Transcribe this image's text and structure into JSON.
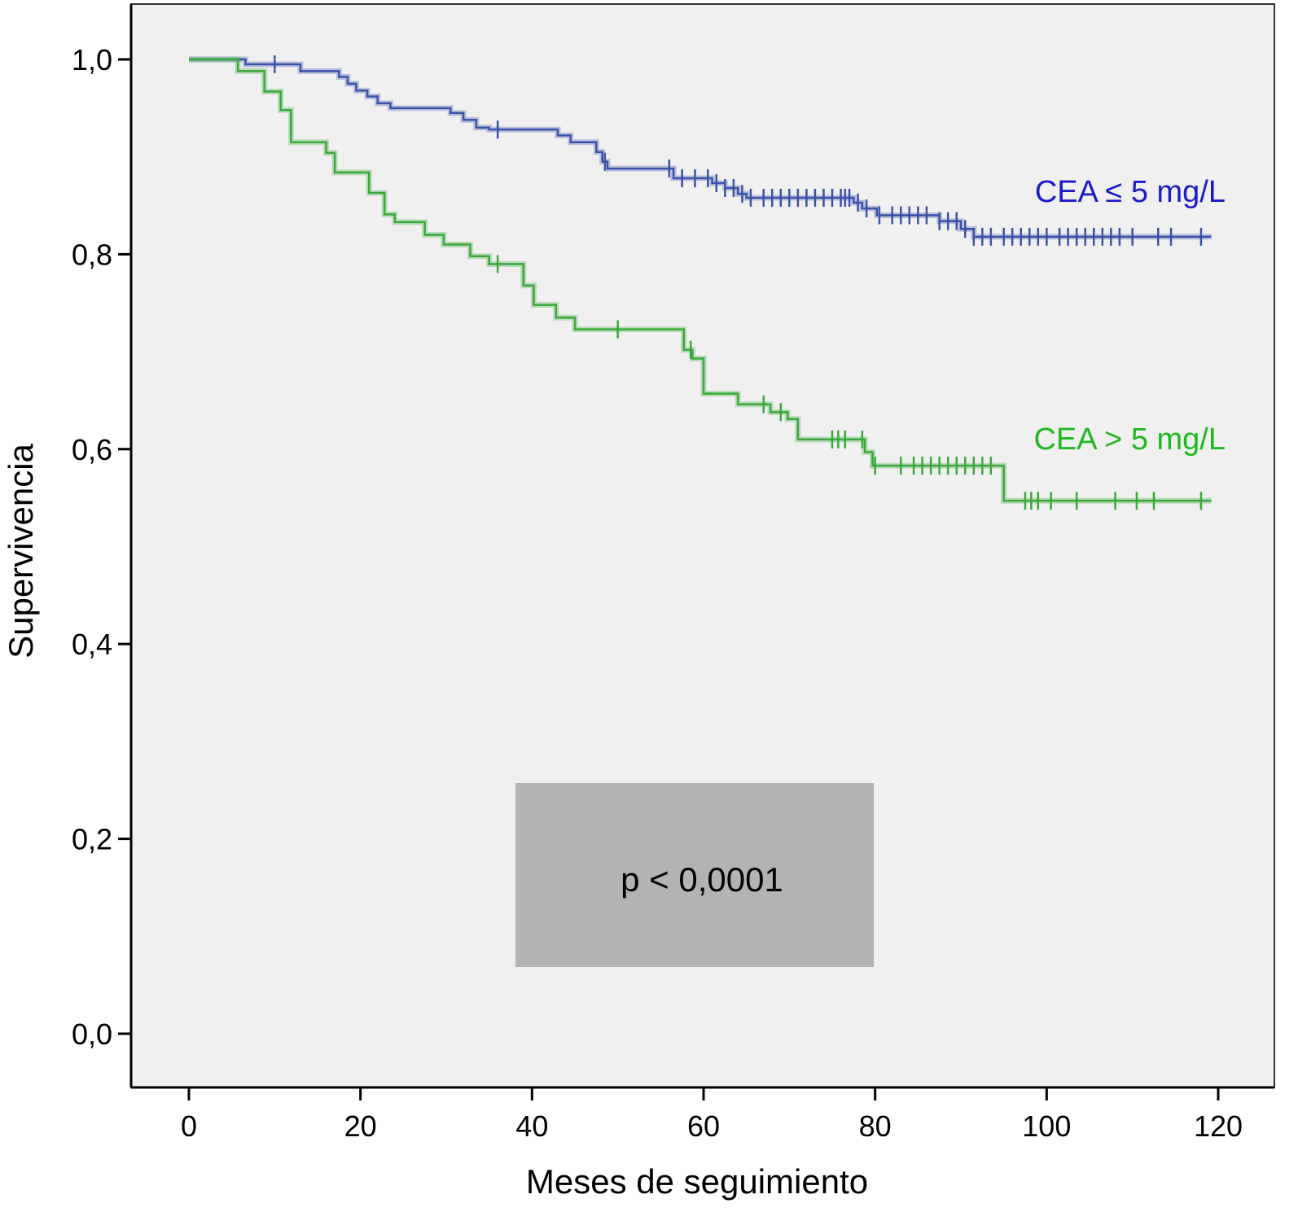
{
  "chart_data": {
    "type": "line",
    "subtype": "kaplan-meier-step",
    "title": "",
    "xlabel": "Meses de seguimiento",
    "ylabel": "Supervivencia",
    "xlim": [
      -7,
      127
    ],
    "ylim": [
      -0.055,
      1.055
    ],
    "xticks": [
      0,
      20,
      40,
      60,
      80,
      100,
      120
    ],
    "xtick_labels": [
      "0",
      "20",
      "40",
      "60",
      "80",
      "100",
      "120"
    ],
    "yticks": [
      0,
      0.2,
      0.4,
      0.6,
      0.8,
      1.0
    ],
    "ytick_labels": [
      "0,0",
      "0,2",
      "0,4",
      "0,6",
      "0,8",
      "1,0"
    ],
    "grid": false,
    "background": "#f0f0f0",
    "series": [
      {
        "name": "CEA ≤ 5 mg/L",
        "color": "#3a52a8",
        "label_color": "#1a1ac8",
        "end": 119.2,
        "steps": [
          [
            0,
            1.0
          ],
          [
            6.6,
            0.995
          ],
          [
            13,
            0.988
          ],
          [
            17.5,
            0.982
          ],
          [
            18.5,
            0.975
          ],
          [
            19.5,
            0.968
          ],
          [
            20.8,
            0.962
          ],
          [
            22,
            0.955
          ],
          [
            23.5,
            0.95
          ],
          [
            30.5,
            0.945
          ],
          [
            32,
            0.938
          ],
          [
            33.5,
            0.93
          ],
          [
            35,
            0.928
          ],
          [
            43,
            0.922
          ],
          [
            44.5,
            0.915
          ],
          [
            47.5,
            0.905
          ],
          [
            48.2,
            0.895
          ],
          [
            48.8,
            0.888
          ],
          [
            56.5,
            0.878
          ],
          [
            61,
            0.873
          ],
          [
            62.5,
            0.868
          ],
          [
            64,
            0.862
          ],
          [
            65,
            0.858
          ],
          [
            77.5,
            0.853
          ],
          [
            78.5,
            0.847
          ],
          [
            80.2,
            0.84
          ],
          [
            87.5,
            0.834
          ],
          [
            90,
            0.826
          ],
          [
            91.5,
            0.818
          ]
        ],
        "censored": [
          10,
          36,
          48.5,
          56,
          57.5,
          59,
          60.5,
          61.5,
          62.5,
          63.5,
          64.5,
          65.5,
          67,
          68,
          69,
          70,
          71,
          72,
          73,
          74,
          75,
          76,
          76.5,
          77,
          78,
          79,
          80.5,
          82,
          83,
          84,
          85,
          86,
          87.5,
          88.5,
          89.5,
          90.5,
          91.5,
          92.5,
          93.5,
          95,
          96,
          97,
          98,
          99,
          100,
          101.5,
          102.5,
          103.5,
          104.5,
          105.5,
          106.5,
          107.5,
          108.5,
          110,
          113,
          114.5,
          118
        ]
      },
      {
        "name": "CEA > 5 mg/L",
        "color": "#3aa83a",
        "label_color": "#1fb81f",
        "end": 119.2,
        "steps": [
          [
            0,
            1.0
          ],
          [
            5.7,
            0.988
          ],
          [
            8.8,
            0.967
          ],
          [
            10.7,
            0.948
          ],
          [
            11.9,
            0.915
          ],
          [
            16,
            0.904
          ],
          [
            17,
            0.884
          ],
          [
            21,
            0.863
          ],
          [
            22.8,
            0.841
          ],
          [
            24,
            0.833
          ],
          [
            27.5,
            0.82
          ],
          [
            29.7,
            0.81
          ],
          [
            32.8,
            0.798
          ],
          [
            35,
            0.79
          ],
          [
            39,
            0.768
          ],
          [
            40.2,
            0.748
          ],
          [
            42.8,
            0.735
          ],
          [
            45,
            0.723
          ],
          [
            57.7,
            0.702
          ],
          [
            58.7,
            0.693
          ],
          [
            60,
            0.657
          ],
          [
            64,
            0.646
          ],
          [
            67.8,
            0.638
          ],
          [
            69.8,
            0.631
          ],
          [
            71,
            0.61
          ],
          [
            78.8,
            0.597
          ],
          [
            79.7,
            0.583
          ],
          [
            95,
            0.547
          ]
        ],
        "censored": [
          36,
          50,
          58.5,
          67,
          69,
          75,
          75.7,
          76.5,
          78.5,
          80,
          83,
          84.5,
          85.5,
          86.5,
          87.5,
          88.5,
          89.5,
          90.5,
          91.5,
          92.5,
          93.5,
          97.5,
          98.2,
          99,
          100.5,
          103.5,
          108,
          110.5,
          112.5,
          118
        ]
      }
    ],
    "annotation": "p < 0,0001"
  }
}
